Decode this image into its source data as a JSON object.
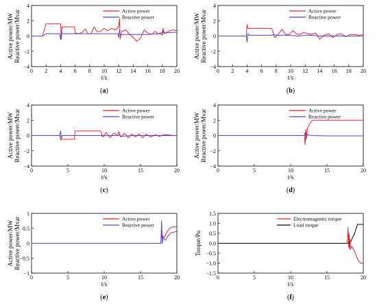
{
  "chart_data": [
    {
      "id": "a",
      "type": "line",
      "panel_label": "a",
      "xlabel": "t/s",
      "ylabel": [
        "Active power/MW",
        "Reactive power/Mvar"
      ],
      "xlim": [
        0,
        20
      ],
      "ylim": [
        -4,
        4
      ],
      "xticks": [
        0,
        2,
        4,
        6,
        8,
        10,
        12,
        14,
        16,
        18,
        20
      ],
      "yticks": [
        -4,
        -2,
        0,
        2,
        4
      ],
      "legend_position": "top-right",
      "grid": false,
      "series": [
        {
          "name": "Active power",
          "color": "#e8232b",
          "points": [
            [
              0,
              0
            ],
            [
              1.5,
              0
            ],
            [
              2,
              1.6
            ],
            [
              4.0,
              1.6
            ],
            [
              4.1,
              -0.4
            ],
            [
              4.2,
              1.2
            ],
            [
              5.9,
              1.2
            ],
            [
              6,
              0.4
            ],
            [
              6.5,
              0.3
            ],
            [
              7,
              0.5
            ],
            [
              7.4,
              0.9
            ],
            [
              7.8,
              0.3
            ],
            [
              8.2,
              0.3
            ],
            [
              8.6,
              1.2
            ],
            [
              9,
              0.6
            ],
            [
              9.5,
              0.6
            ],
            [
              10,
              1.0
            ],
            [
              10.5,
              0.7
            ],
            [
              11,
              1.0
            ],
            [
              11.6,
              0.8
            ],
            [
              12.0,
              1.3
            ],
            [
              12.1,
              2.3
            ],
            [
              12.2,
              -0.4
            ],
            [
              12.4,
              0.6
            ],
            [
              13,
              0.8
            ],
            [
              13.4,
              0.3
            ],
            [
              14,
              -0.2
            ],
            [
              14.5,
              -0.7
            ],
            [
              15,
              -0.3
            ],
            [
              15.5,
              0.8
            ],
            [
              16,
              0.4
            ],
            [
              16.5,
              0.2
            ],
            [
              17,
              0.6
            ],
            [
              17.5,
              0.3
            ],
            [
              18,
              0.5
            ],
            [
              18.1,
              1.0
            ],
            [
              18.3,
              0.3
            ],
            [
              18.8,
              0.6
            ],
            [
              19.4,
              0.8
            ],
            [
              20,
              0.7
            ]
          ]
        },
        {
          "name": "Reactive power",
          "color": "#5b3ec8",
          "points": [
            [
              0,
              0
            ],
            [
              1.5,
              0
            ],
            [
              2,
              0.3
            ],
            [
              3.9,
              0.3
            ],
            [
              4.0,
              -0.5
            ],
            [
              4.1,
              0.7
            ],
            [
              4.2,
              0.3
            ],
            [
              11.9,
              0.3
            ],
            [
              12.0,
              -0.2
            ],
            [
              12.1,
              0.8
            ],
            [
              12.2,
              0.2
            ],
            [
              13,
              0.2
            ],
            [
              14,
              0.2
            ],
            [
              16,
              0.2
            ],
            [
              17.9,
              0.3
            ],
            [
              18.0,
              0.1
            ],
            [
              18.1,
              0.7
            ],
            [
              18.2,
              0.4
            ],
            [
              20,
              0.5
            ]
          ]
        }
      ]
    },
    {
      "id": "b",
      "type": "line",
      "panel_label": "b",
      "xlabel": "t/s",
      "ylabel": [
        "Active power/MW",
        "Reactive power/Mvar"
      ],
      "xlim": [
        0,
        20
      ],
      "ylim": [
        -4,
        4
      ],
      "xticks": [
        0,
        2,
        4,
        6,
        8,
        10,
        12,
        14,
        16,
        18,
        20
      ],
      "yticks": [
        -4,
        -2,
        0,
        2,
        4
      ],
      "legend_position": "top-right",
      "grid": false,
      "series": [
        {
          "name": "Active power",
          "color": "#e8232b",
          "points": [
            [
              0,
              0
            ],
            [
              3.9,
              0
            ],
            [
              4.0,
              1.5
            ],
            [
              4.1,
              1.0
            ],
            [
              7.4,
              1.0
            ],
            [
              7.8,
              -0.2
            ],
            [
              8.3,
              0.2
            ],
            [
              8.8,
              0.9
            ],
            [
              9.3,
              0.2
            ],
            [
              9.8,
              0.2
            ],
            [
              10.3,
              0.7
            ],
            [
              10.8,
              0.3
            ],
            [
              11.3,
              0.2
            ],
            [
              11.8,
              0.5
            ],
            [
              12.3,
              0.3
            ],
            [
              12.8,
              0.2
            ],
            [
              13.4,
              0.4
            ],
            [
              14,
              -0.4
            ],
            [
              14.6,
              0.1
            ],
            [
              15.2,
              0.3
            ],
            [
              15.8,
              -0.2
            ],
            [
              16.4,
              0.2
            ],
            [
              17,
              0.3
            ],
            [
              17.6,
              -0.1
            ],
            [
              18.2,
              0.2
            ],
            [
              18.8,
              0.2
            ],
            [
              19.4,
              0.1
            ],
            [
              20,
              0.2
            ]
          ]
        },
        {
          "name": "Reactive power",
          "color": "#5b3ec8",
          "points": [
            [
              0,
              0
            ],
            [
              3.9,
              0
            ],
            [
              4.0,
              -0.8
            ],
            [
              4.1,
              0.3
            ],
            [
              4.3,
              0.1
            ],
            [
              7.5,
              0.1
            ],
            [
              7.7,
              0.2
            ],
            [
              8,
              0.1
            ],
            [
              9,
              0.1
            ],
            [
              10,
              0.1
            ],
            [
              11,
              0.0
            ],
            [
              12,
              0.1
            ],
            [
              13,
              0.1
            ],
            [
              14,
              0.0
            ],
            [
              16,
              0.0
            ],
            [
              18,
              0.0
            ],
            [
              20,
              0.0
            ]
          ]
        }
      ]
    },
    {
      "id": "c",
      "type": "line",
      "panel_label": "c",
      "xlabel": "t/s",
      "ylabel": [
        "Active power/MW",
        "Reactive power/Mvar"
      ],
      "xlim": [
        0,
        20
      ],
      "ylim": [
        -4,
        4
      ],
      "xticks": [
        0,
        5,
        10,
        15,
        20
      ],
      "yticks": [
        -4,
        -2,
        0,
        2,
        4
      ],
      "legend_position": "top-right",
      "grid": false,
      "series": [
        {
          "name": "Active power",
          "color": "#e8232b",
          "points": [
            [
              0,
              0
            ],
            [
              3.9,
              0
            ],
            [
              4.0,
              -0.6
            ],
            [
              4.1,
              -0.5
            ],
            [
              5.9,
              -0.5
            ],
            [
              6.0,
              0.6
            ],
            [
              9.5,
              0.6
            ],
            [
              9.8,
              -0.2
            ],
            [
              10.3,
              0.4
            ],
            [
              10.8,
              -0.3
            ],
            [
              11.3,
              0.3
            ],
            [
              11.8,
              0.1
            ],
            [
              12.0,
              0.5
            ],
            [
              12.3,
              -0.2
            ],
            [
              12.8,
              0.3
            ],
            [
              13.3,
              -0.3
            ],
            [
              13.8,
              0.2
            ],
            [
              14.3,
              -0.2
            ],
            [
              14.8,
              0.2
            ],
            [
              15.3,
              -0.3
            ],
            [
              15.8,
              0.2
            ],
            [
              16.4,
              -0.2
            ],
            [
              17,
              0.1
            ],
            [
              17.6,
              -0.1
            ],
            [
              18.2,
              0.1
            ],
            [
              18.8,
              0.1
            ],
            [
              19.4,
              0.0
            ],
            [
              20,
              0.0
            ]
          ]
        },
        {
          "name": "Reactive power",
          "color": "#5b3ec8",
          "points": [
            [
              0,
              0
            ],
            [
              3.9,
              0
            ],
            [
              4.0,
              0.6
            ],
            [
              4.1,
              -0.4
            ],
            [
              4.2,
              0.0
            ],
            [
              6,
              0.0
            ],
            [
              8,
              0.0
            ],
            [
              10,
              0.0
            ],
            [
              12,
              0.0
            ],
            [
              12.1,
              0.2
            ],
            [
              12.2,
              -0.1
            ],
            [
              14,
              0.0
            ],
            [
              16,
              0.0
            ],
            [
              18,
              0.0
            ],
            [
              20,
              0.0
            ]
          ]
        }
      ]
    },
    {
      "id": "d",
      "type": "line",
      "panel_label": "d",
      "xlabel": "t/s",
      "ylabel": [
        "Active power/MW",
        "Reactive power/Mvar"
      ],
      "xlim": [
        0,
        20
      ],
      "ylim": [
        -4,
        4
      ],
      "xticks": [
        0,
        5,
        10,
        15,
        20
      ],
      "yticks": [
        -4,
        -2,
        0,
        2,
        4
      ],
      "legend_position": "top-right",
      "grid": false,
      "series": [
        {
          "name": "Active power",
          "color": "#e8232b",
          "points": [
            [
              0,
              0
            ],
            [
              11.9,
              0
            ],
            [
              12.0,
              -1.2
            ],
            [
              12.1,
              0.8
            ],
            [
              12.2,
              -0.3
            ],
            [
              12.3,
              0.9
            ],
            [
              12.6,
              1.5
            ],
            [
              13,
              2.0
            ],
            [
              15,
              2.0
            ],
            [
              20,
              2.0
            ]
          ]
        },
        {
          "name": "Reactive power",
          "color": "#5b3ec8",
          "points": [
            [
              0,
              0
            ],
            [
              11.9,
              0
            ],
            [
              12.0,
              0.4
            ],
            [
              12.1,
              -0.5
            ],
            [
              12.3,
              0.1
            ],
            [
              13,
              0.0
            ],
            [
              15,
              -0.05
            ],
            [
              18,
              -0.05
            ],
            [
              20,
              -0.05
            ]
          ]
        }
      ]
    },
    {
      "id": "e",
      "type": "line",
      "panel_label": "e",
      "xlabel": "t/s",
      "ylabel": [
        "Active power/MW",
        "Reactive power/Mvar"
      ],
      "xlim": [
        0,
        20
      ],
      "ylim": [
        -1,
        1
      ],
      "xticks": [
        0,
        5,
        10,
        15,
        20
      ],
      "yticks": [
        -1,
        -0.5,
        0,
        0.5,
        1
      ],
      "ytick_labels": [
        "−1",
        "−0.5",
        "0",
        "0.5",
        "1"
      ],
      "legend_position": "top-right",
      "grid": false,
      "series": [
        {
          "name": "Active power",
          "color": "#e8232b",
          "points": [
            [
              0,
              0
            ],
            [
              17.8,
              0
            ],
            [
              17.9,
              0.4
            ],
            [
              18.0,
              0.1
            ],
            [
              18.1,
              0.25
            ],
            [
              18.3,
              0.2
            ],
            [
              18.6,
              0.35
            ],
            [
              19,
              0.5
            ],
            [
              19.5,
              0.55
            ],
            [
              20,
              0.55
            ]
          ]
        },
        {
          "name": "Reactive power",
          "color": "#5b3ec8",
          "points": [
            [
              0,
              0
            ],
            [
              17.8,
              0
            ],
            [
              17.9,
              0.75
            ],
            [
              18.0,
              0.0
            ],
            [
              18.1,
              0.2
            ],
            [
              18.4,
              0.1
            ],
            [
              18.8,
              0.25
            ],
            [
              19.2,
              0.35
            ],
            [
              20,
              0.4
            ]
          ]
        }
      ]
    },
    {
      "id": "f",
      "type": "line",
      "panel_label": "f",
      "xlabel": "t/s",
      "ylabel": [
        "Torque/Pu"
      ],
      "xlim": [
        0,
        20
      ],
      "ylim": [
        -1.5,
        1.5
      ],
      "xticks": [
        0,
        5,
        10,
        15,
        20
      ],
      "yticks": [
        -1.5,
        -1.0,
        -0.5,
        0.0,
        0.5,
        1.0,
        1.5
      ],
      "ytick_labels": [
        "−1.5",
        "−1.0",
        "−0.5",
        "0.0",
        "0.5",
        "1.0",
        "1.5"
      ],
      "legend_position": "top-right",
      "grid": false,
      "series": [
        {
          "name": "Electromagnetic torque",
          "color": "#e8232b",
          "points": [
            [
              0,
              0
            ],
            [
              17.8,
              0
            ],
            [
              17.9,
              0.8
            ],
            [
              18.0,
              -0.2
            ],
            [
              18.05,
              0.5
            ],
            [
              18.1,
              -0.3
            ],
            [
              18.15,
              0.2
            ],
            [
              18.25,
              -0.3
            ],
            [
              18.4,
              -0.15
            ],
            [
              18.8,
              -0.4
            ],
            [
              19.2,
              -0.8
            ],
            [
              19.6,
              -1.0
            ],
            [
              20,
              -1.0
            ]
          ]
        },
        {
          "name": "Load torque",
          "color": "#000000",
          "points": [
            [
              0,
              0
            ],
            [
              18.0,
              0
            ],
            [
              18.3,
              0.1
            ],
            [
              18.8,
              0.5
            ],
            [
              19.2,
              0.95
            ],
            [
              20,
              0.95
            ]
          ]
        }
      ]
    }
  ]
}
